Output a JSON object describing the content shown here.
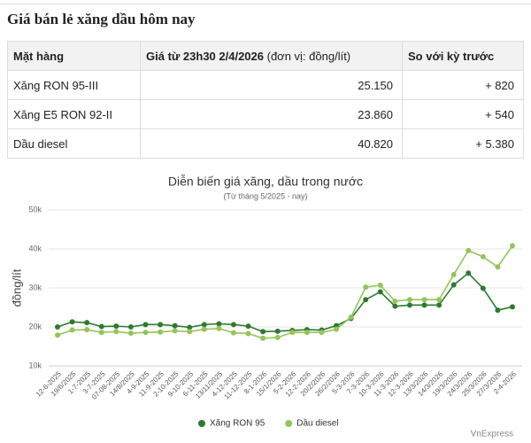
{
  "header": {
    "title": "Giá bán lẻ xăng dầu hôm nay"
  },
  "table": {
    "columns": [
      "Mặt hàng",
      "Giá từ 23h30 2/4/2026",
      "(đơn vị: đồng/lít)",
      "So với kỳ trước"
    ],
    "rows": [
      [
        "Xăng RON 95-III",
        "25.150",
        "+ 820"
      ],
      [
        "Xăng E5 RON 92-II",
        "23.860",
        "+ 540"
      ],
      [
        "Dầu diesel",
        "40.820",
        "+ 5.380"
      ]
    ]
  },
  "chart_data": {
    "type": "line",
    "title": "Diễn biến giá xăng, dầu trong nước",
    "subtitle": "(Từ tháng 5/2025 - nay)",
    "y_label": "đồng/lít",
    "source": "VnExpress",
    "categories": [
      "12-6-2025",
      "19/6/2025",
      "1-7-2025",
      "3-7-2025",
      "07-08-2025",
      "14/8/2025",
      "4-9-2025",
      "11-9-2025",
      "2-10-2025",
      "9-10-2025",
      "6-11-2025",
      "13/11/2025",
      "4-12-2025",
      "11-12-2025",
      "8-1-2026",
      "15/1/2026",
      "5-2-2026",
      "12-2-2026",
      "20/2/2026",
      "26/2/2026",
      "5-3-2026",
      "7-3-2026",
      "10-3-2026",
      "11-3-2026",
      "12-3-2026",
      "13/3/2026",
      "14/3/2026",
      "19/3/2026",
      "24/3/2026",
      "25/3/2026",
      "27/3/2026",
      "2-4-2026"
    ],
    "series": [
      {
        "name": "Xăng RON 95",
        "color": "#2e7a32",
        "values": [
          20000,
          21300,
          21100,
          20100,
          20200,
          20000,
          20600,
          20600,
          20300,
          19900,
          20600,
          20800,
          20600,
          20200,
          18800,
          18900,
          19100,
          19300,
          19200,
          20300,
          22200,
          27000,
          29000,
          25300,
          25600,
          25600,
          25600,
          30800,
          33800,
          29900,
          24300,
          25150
        ]
      },
      {
        "name": "Dầu diesel",
        "color": "#93c55a",
        "values": [
          17900,
          19200,
          19300,
          18600,
          18800,
          18400,
          18600,
          18700,
          19000,
          18800,
          19400,
          19600,
          18500,
          18300,
          17100,
          17300,
          18600,
          18600,
          18600,
          19400,
          22500,
          30200,
          30700,
          26600,
          27000,
          27000,
          27000,
          33400,
          39600,
          38000,
          35400,
          40820
        ]
      }
    ],
    "ylim": [
      10000,
      50000
    ],
    "yticks": [
      {
        "value": 10000,
        "label": "10k"
      },
      {
        "value": 20000,
        "label": "20k"
      },
      {
        "value": 30000,
        "label": "30k"
      },
      {
        "value": 40000,
        "label": "40k"
      },
      {
        "value": 50000,
        "label": "50k"
      }
    ],
    "grid": true
  }
}
